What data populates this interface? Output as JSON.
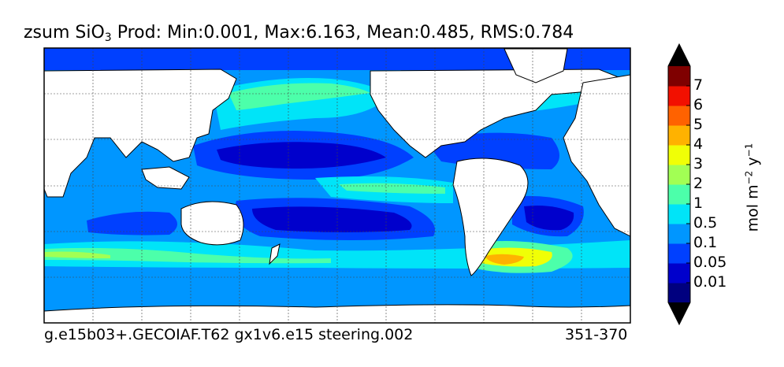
{
  "title": {
    "var": "zsum SiO",
    "sub": "3",
    "rest": "  Prod: Min:0.001, Max:6.163, Mean:0.485, RMS:0.784"
  },
  "footer": {
    "case": "g.e15b03+.GECOIAF.T62 gx1v6.e15 steering.002",
    "years": "351-370"
  },
  "colorbar": {
    "units_prefix": "mol m",
    "units_exp1": "−2",
    "units_mid": " y",
    "units_exp2": "−1",
    "ticks": [
      "7",
      "6",
      "5",
      "4",
      "3",
      "2",
      "1",
      "0.5",
      "0.1",
      "0.05",
      "0.01"
    ],
    "colors": [
      "#00007f",
      "#0000cc",
      "#0040ff",
      "#0096ff",
      "#00e4f8",
      "#4cffaa",
      "#a2ff54",
      "#f0ff06",
      "#ffb200",
      "#ff6200",
      "#f21000",
      "#7f0000"
    ],
    "under_color": "#000000",
    "over_color": "#000000"
  },
  "map": {
    "projection": "cylindrical",
    "grid": true,
    "land_color": "#ffffff",
    "ocean_base_color": "#0096ff"
  }
}
